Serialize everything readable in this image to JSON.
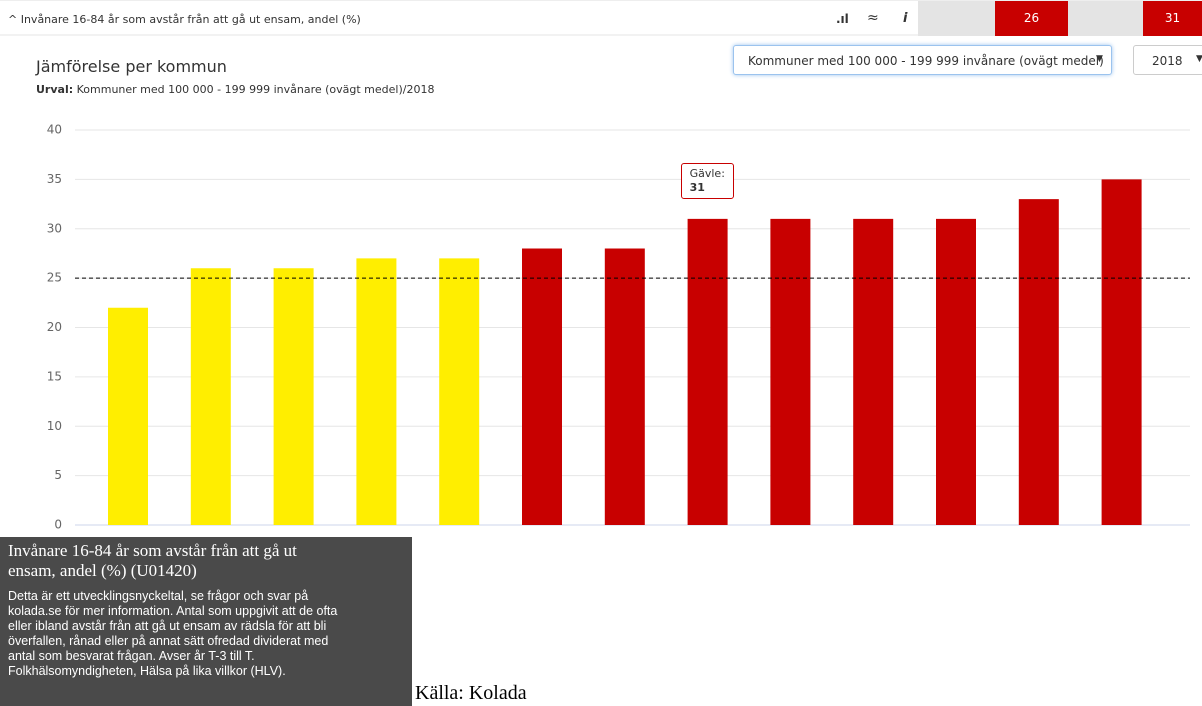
{
  "header": {
    "title": "^ Invånare 16-84 år som avstår från att gå ut ensam, andel (%)",
    "icons": [
      ".ıl",
      "≈",
      "i"
    ],
    "score_a": 26,
    "score_b": 31
  },
  "panel": {
    "title": "Jämförelse per kommun",
    "selection_label": "Urval:",
    "selection": "Kommuner med 100 000 - 199 999 invånare (ovägt medel)/2018",
    "group_select": "Kommuner med 100 000 - 199 999 invånare (ovägt medel)",
    "year_select": "2018",
    "caret": "▼"
  },
  "chart_data": {
    "type": "bar",
    "values": [
      22,
      26,
      26,
      27,
      27,
      28,
      28,
      31,
      31,
      31,
      31,
      33,
      35
    ],
    "colors": [
      "#ffee00",
      "#ffee00",
      "#ffee00",
      "#ffee00",
      "#ffee00",
      "#c80000",
      "#c80000",
      "#c80000",
      "#c80000",
      "#c80000",
      "#c80000",
      "#c80000",
      "#c80000"
    ],
    "ylim": [
      0,
      40
    ],
    "yticks": [
      0,
      5,
      10,
      15,
      20,
      25,
      30,
      35,
      40
    ],
    "grid": true,
    "reference_line": 25,
    "tooltip_label": "Gävle:"
  },
  "info": {
    "title_lines": [
      "Invånare 16-84 år som avstår från att gå ut",
      "ensam, andel (%) (U01420)"
    ],
    "body_lines": [
      "Detta är ett utvecklingsnyckeltal, se frågor och svar på",
      "kolada.se för mer information. Antal som uppgivit att de ofta",
      "eller ibland avstår från att gå ut ensam av rädsla för att bli",
      "överfallen, rånad eller på annat sätt ofredad dividerat med",
      "antal som besvarat frågan. Avser år T-3 till T.",
      "Folkhälsomyndigheten, Hälsa på lika villkor (HLV)."
    ]
  },
  "source": "Källa: Kolada"
}
